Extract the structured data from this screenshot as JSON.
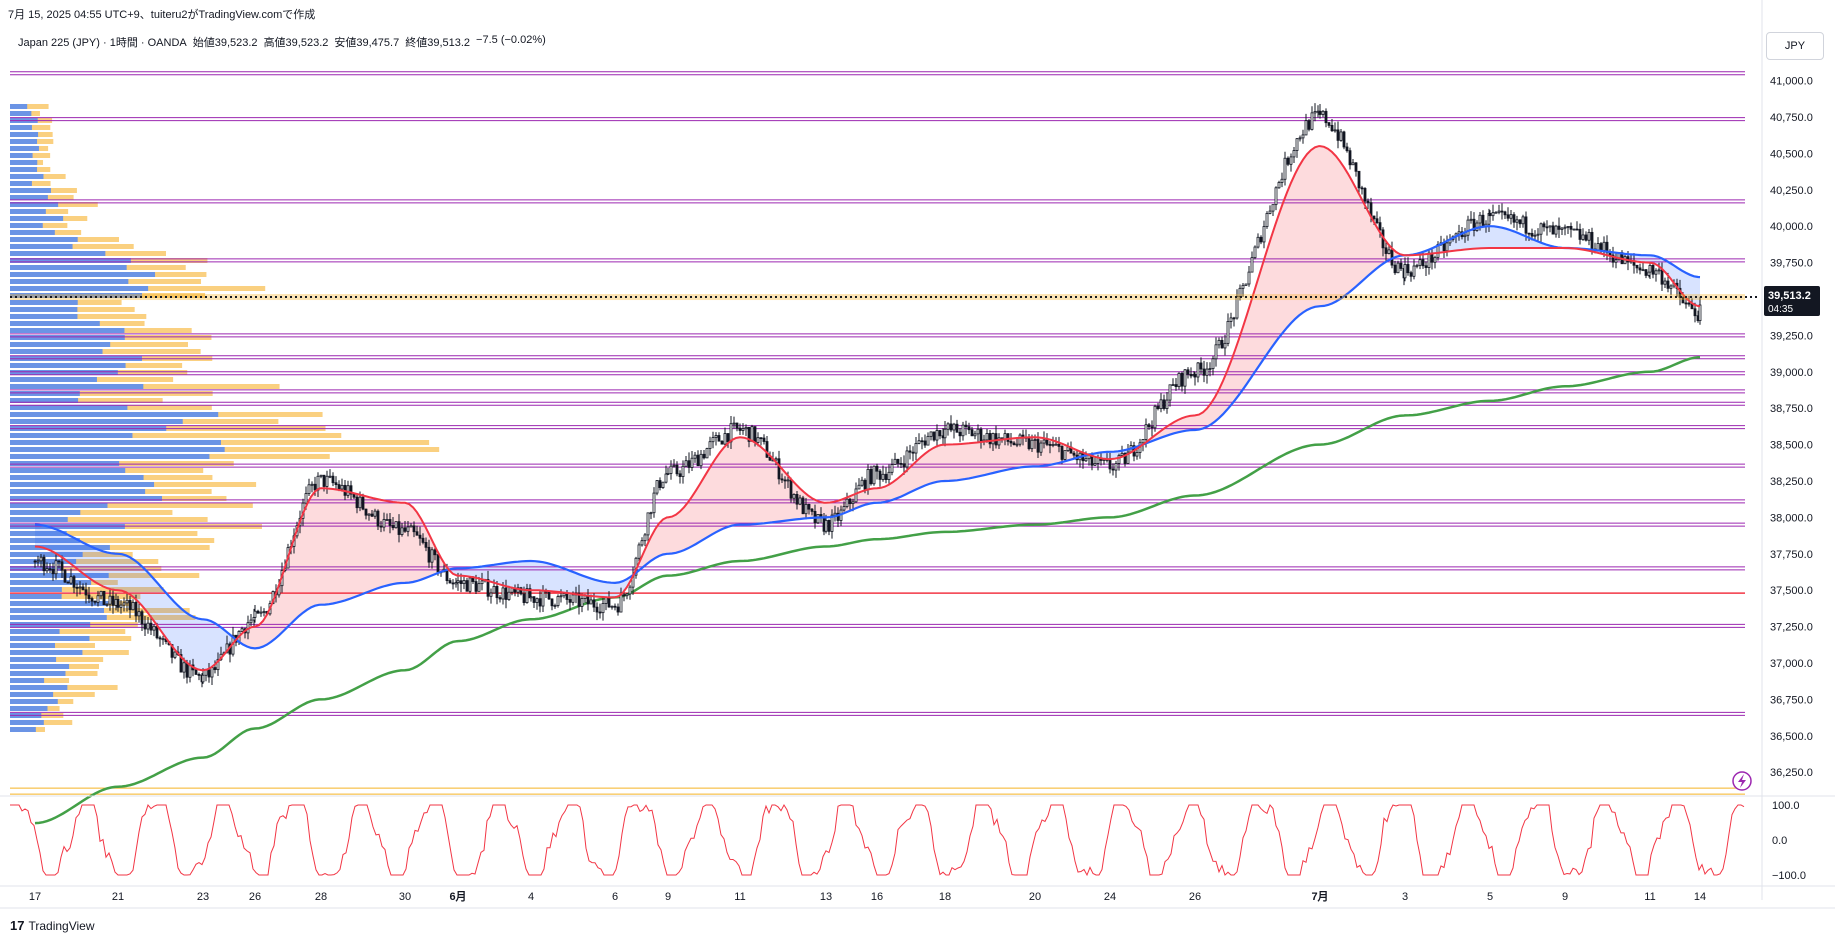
{
  "header": {
    "caption": "7月 15, 2025 04:55 UTC+9、tuiteru2がTradingView.comで作成",
    "symbol": "Japan 225 (JPY) · 1時間 · OANDA",
    "open": "始値39,523.2",
    "high": "高値39,523.2",
    "low": "安値39,475.7",
    "close": "終値39,513.2",
    "change": "−7.5 (−0.02%)"
  },
  "currency_button": "JPY",
  "price_tag": {
    "price": "39,513.2",
    "countdown": "04:35"
  },
  "footer": {
    "brand": "TradingView",
    "mark": "17"
  },
  "colors": {
    "candle": "#131722",
    "ema_fast": "#f23645",
    "ema_mid": "#2962ff",
    "ema_slow": "#43a047",
    "level_line": "#9c27b0",
    "red_level": "#f23645",
    "current_price_line": "#f5b324",
    "volume_profile_up": "#5b8def",
    "volume_profile_down": "#f9c86a",
    "oscillator": "#f23645",
    "fill_red": "rgba(242,54,69,0.18)",
    "fill_blue": "rgba(41,98,255,0.18)"
  },
  "chart_data": {
    "type": "line",
    "title": "",
    "subtitle": "",
    "xlabel": "",
    "ylabel": "",
    "ylim": [
      36100,
      41100
    ],
    "y_ticks": [
      "41,000.0",
      "40,750.0",
      "40,500.0",
      "40,250.0",
      "40,000.0",
      "39,750.0",
      "39,500.0",
      "39,250.0",
      "39,000.0",
      "38,750.0",
      "38,500.0",
      "38,250.0",
      "38,000.0",
      "37,750.0",
      "37,500.0",
      "37,250.0",
      "37,000.0",
      "36,750.0",
      "36,500.0",
      "36,250.0"
    ],
    "x_ticks": [
      "17",
      "21",
      "23",
      "26",
      "28",
      "30",
      "6月",
      "4",
      "6",
      "9",
      "11",
      "13",
      "16",
      "18",
      "20",
      "24",
      "26",
      "7月",
      "3",
      "5",
      "9",
      "11",
      "14"
    ],
    "x": [
      "05-17",
      "05-21",
      "05-23",
      "05-26",
      "05-28",
      "05-30",
      "06-01",
      "06-04",
      "06-06",
      "06-09",
      "06-11",
      "06-13",
      "06-16",
      "06-18",
      "06-20",
      "06-24",
      "06-26",
      "07-01",
      "07-03",
      "07-05",
      "07-09",
      "07-11",
      "07-14"
    ],
    "series": [
      {
        "name": "",
        "values": [
          37700,
          37400,
          36900,
          37300,
          38250,
          37900,
          37550,
          37450,
          37400,
          38300,
          38600,
          37950,
          38300,
          38600,
          38500,
          38350,
          39000,
          40750,
          39700,
          40050,
          39950,
          39700,
          39400
        ]
      },
      {
        "name": "",
        "values": [
          37800,
          37500,
          36950,
          37250,
          38200,
          38100,
          37600,
          37500,
          37450,
          38000,
          38550,
          38100,
          38200,
          38500,
          38550,
          38400,
          38700,
          40550,
          39800,
          39850,
          39850,
          39750,
          39450
        ]
      },
      {
        "name": "",
        "values": [
          37950,
          37750,
          37300,
          37100,
          37400,
          37550,
          37650,
          37700,
          37550,
          37750,
          37950,
          38000,
          38100,
          38250,
          38350,
          38450,
          38600,
          39450,
          39800,
          40000,
          39850,
          39800,
          39650
        ]
      },
      {
        "name": "",
        "values": [
          35900,
          36150,
          36350,
          36550,
          36750,
          36950,
          37150,
          37300,
          37450,
          37600,
          37700,
          37800,
          37850,
          37900,
          37950,
          38000,
          38150,
          38500,
          38700,
          38800,
          38900,
          39000,
          39100
        ]
      }
    ],
    "horizontal_levels": [
      41050,
      40735,
      40170,
      39765,
      39250,
      39100,
      38990,
      38865,
      38780,
      38620,
      38355,
      38110,
      37950,
      37650,
      37480,
      37255,
      36650,
      36120
    ],
    "red_level": 37480,
    "current_price": 39513.2,
    "oscillator": {
      "ylim": [
        -100,
        100
      ],
      "y_ticks": [
        "100.0",
        "0.0",
        "−100.0"
      ]
    },
    "legend": "none",
    "grid": false
  }
}
